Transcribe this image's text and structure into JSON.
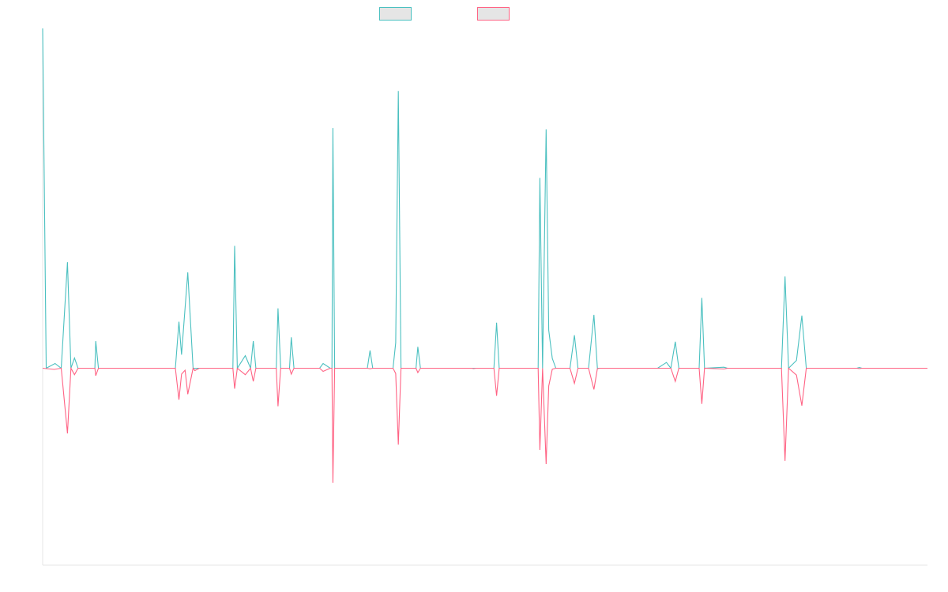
{
  "colors": {
    "teal": "#4bc0c0",
    "pink": "#ff6384",
    "legend_fill": "#e5e5e5",
    "axis": "#e6e6e6"
  },
  "chart_data": {
    "type": "line",
    "title": "",
    "xlabel": "",
    "ylabel": "",
    "legend": {
      "position": "top",
      "entries": [
        "",
        ""
      ]
    },
    "grid": false,
    "xlim": [
      0,
      1
    ],
    "ylim": [
      -1,
      1
    ],
    "series": [
      {
        "color": "#4bc0c0",
        "points": [
          [
            0.0,
            1.0
          ],
          [
            0.004,
            0.0
          ],
          [
            0.014,
            0.014
          ],
          [
            0.021,
            0.0
          ],
          [
            0.028,
            0.312
          ],
          [
            0.032,
            0.0
          ],
          [
            0.036,
            0.03
          ],
          [
            0.04,
            0.0
          ],
          [
            0.059,
            0.0
          ],
          [
            0.06,
            0.08
          ],
          [
            0.063,
            0.0
          ],
          [
            0.15,
            0.0
          ],
          [
            0.154,
            0.137
          ],
          [
            0.157,
            0.04
          ],
          [
            0.164,
            0.282
          ],
          [
            0.17,
            0.0
          ],
          [
            0.215,
            0.0
          ],
          [
            0.217,
            0.36
          ],
          [
            0.22,
            0.0
          ],
          [
            0.229,
            0.037
          ],
          [
            0.235,
            0.0
          ],
          [
            0.238,
            0.08
          ],
          [
            0.241,
            0.0
          ],
          [
            0.264,
            0.0
          ],
          [
            0.266,
            0.176
          ],
          [
            0.269,
            0.0
          ],
          [
            0.279,
            0.0
          ],
          [
            0.281,
            0.091
          ],
          [
            0.284,
            0.0
          ],
          [
            0.313,
            0.0
          ],
          [
            0.317,
            0.014
          ],
          [
            0.325,
            0.0
          ],
          [
            0.327,
            0.0
          ],
          [
            0.328,
            0.707
          ],
          [
            0.33,
            0.0
          ],
          [
            0.367,
            0.0
          ],
          [
            0.37,
            0.052
          ],
          [
            0.373,
            0.0
          ],
          [
            0.396,
            0.0
          ],
          [
            0.399,
            0.075
          ],
          [
            0.402,
            0.816
          ],
          [
            0.405,
            0.0
          ],
          [
            0.422,
            0.0
          ],
          [
            0.424,
            0.063
          ],
          [
            0.427,
            0.0
          ],
          [
            0.51,
            0.0
          ],
          [
            0.513,
            0.134
          ],
          [
            0.516,
            0.0
          ],
          [
            0.56,
            0.0
          ],
          [
            0.562,
            0.56
          ],
          [
            0.565,
            0.0
          ],
          [
            0.569,
            0.703
          ],
          [
            0.572,
            0.112
          ],
          [
            0.576,
            0.029
          ],
          [
            0.58,
            0.0
          ],
          [
            0.596,
            0.0
          ],
          [
            0.601,
            0.097
          ],
          [
            0.605,
            0.0
          ],
          [
            0.617,
            0.0
          ],
          [
            0.623,
            0.157
          ],
          [
            0.627,
            0.0
          ],
          [
            0.695,
            0.0
          ],
          [
            0.705,
            0.017
          ],
          [
            0.71,
            0.0
          ],
          [
            0.715,
            0.078
          ],
          [
            0.719,
            0.0
          ],
          [
            0.742,
            0.0
          ],
          [
            0.745,
            0.207
          ],
          [
            0.748,
            0.0
          ],
          [
            0.77,
            0.003
          ],
          [
            0.774,
            0.0
          ],
          [
            0.835,
            0.0
          ],
          [
            0.839,
            0.27
          ],
          [
            0.843,
            0.0
          ],
          [
            0.852,
            0.023
          ],
          [
            0.858,
            0.155
          ],
          [
            0.863,
            0.0
          ],
          [
            0.92,
            0.0
          ],
          [
            0.923,
            0.002
          ],
          [
            0.926,
            0.0
          ],
          [
            1.0,
            0.0
          ]
        ]
      },
      {
        "color": "#ff6384",
        "points": [
          [
            0.0,
            0.0
          ],
          [
            0.013,
            -0.006
          ],
          [
            0.021,
            0.0
          ],
          [
            0.028,
            -0.331
          ],
          [
            0.032,
            0.0
          ],
          [
            0.036,
            -0.033
          ],
          [
            0.04,
            0.0
          ],
          [
            0.059,
            0.0
          ],
          [
            0.06,
            -0.038
          ],
          [
            0.063,
            0.0
          ],
          [
            0.15,
            0.0
          ],
          [
            0.154,
            -0.16
          ],
          [
            0.157,
            -0.03
          ],
          [
            0.161,
            -0.01
          ],
          [
            0.164,
            -0.132
          ],
          [
            0.17,
            0.0
          ],
          [
            0.172,
            -0.012
          ],
          [
            0.177,
            0.0
          ],
          [
            0.215,
            0.0
          ],
          [
            0.217,
            -0.104
          ],
          [
            0.22,
            0.0
          ],
          [
            0.229,
            -0.033
          ],
          [
            0.235,
            0.0
          ],
          [
            0.238,
            -0.067
          ],
          [
            0.241,
            0.0
          ],
          [
            0.264,
            0.0
          ],
          [
            0.266,
            -0.193
          ],
          [
            0.269,
            0.0
          ],
          [
            0.279,
            0.0
          ],
          [
            0.281,
            -0.03
          ],
          [
            0.284,
            0.0
          ],
          [
            0.313,
            0.0
          ],
          [
            0.317,
            -0.016
          ],
          [
            0.325,
            0.0
          ],
          [
            0.327,
            0.0
          ],
          [
            0.328,
            -0.582
          ],
          [
            0.33,
            0.0
          ],
          [
            0.367,
            0.0
          ],
          [
            0.37,
            -0.003
          ],
          [
            0.373,
            0.0
          ],
          [
            0.396,
            0.0
          ],
          [
            0.399,
            -0.027
          ],
          [
            0.402,
            -0.388
          ],
          [
            0.405,
            0.0
          ],
          [
            0.422,
            0.0
          ],
          [
            0.424,
            -0.022
          ],
          [
            0.427,
            0.0
          ],
          [
            0.485,
            0.0
          ],
          [
            0.487,
            -0.002
          ],
          [
            0.49,
            0.0
          ],
          [
            0.51,
            0.0
          ],
          [
            0.513,
            -0.14
          ],
          [
            0.516,
            0.0
          ],
          [
            0.56,
            0.0
          ],
          [
            0.562,
            -0.415
          ],
          [
            0.565,
            0.0
          ],
          [
            0.569,
            -0.487
          ],
          [
            0.572,
            -0.09
          ],
          [
            0.576,
            -0.005
          ],
          [
            0.58,
            0.0
          ],
          [
            0.596,
            0.0
          ],
          [
            0.601,
            -0.077
          ],
          [
            0.605,
            0.0
          ],
          [
            0.617,
            0.0
          ],
          [
            0.623,
            -0.108
          ],
          [
            0.627,
            -0.002
          ],
          [
            0.63,
            0.0
          ],
          [
            0.71,
            0.0
          ],
          [
            0.715,
            -0.067
          ],
          [
            0.719,
            0.0
          ],
          [
            0.742,
            0.0
          ],
          [
            0.745,
            -0.181
          ],
          [
            0.748,
            0.0
          ],
          [
            0.77,
            -0.004
          ],
          [
            0.774,
            0.0
          ],
          [
            0.835,
            0.0
          ],
          [
            0.839,
            -0.47
          ],
          [
            0.843,
            0.0
          ],
          [
            0.852,
            -0.035
          ],
          [
            0.858,
            -0.19
          ],
          [
            0.863,
            0.0
          ],
          [
            0.92,
            0.0
          ],
          [
            0.923,
            -0.002
          ],
          [
            0.926,
            0.0
          ],
          [
            1.0,
            0.0
          ]
        ]
      }
    ]
  }
}
